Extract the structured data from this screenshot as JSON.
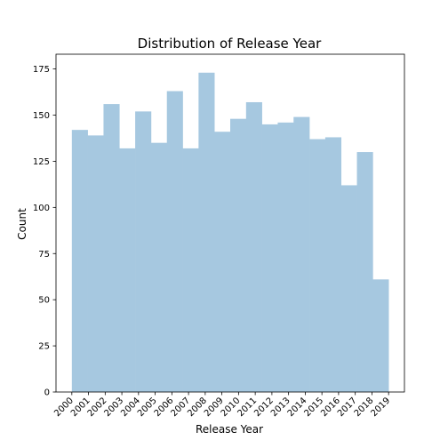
{
  "chart_data": {
    "type": "bar",
    "title": "Distribution of Release Year",
    "xlabel": "Release Year",
    "ylabel": "Count",
    "categories": [
      "2000",
      "2001",
      "2002",
      "2003",
      "2004",
      "2005",
      "2006",
      "2007",
      "2008",
      "2009",
      "2010",
      "2011",
      "2012",
      "2013",
      "2014",
      "2015",
      "2016",
      "2017",
      "2018",
      "2019"
    ],
    "bins": [
      {
        "start": 2000,
        "end": 2000.95,
        "value": 142
      },
      {
        "start": 2000.95,
        "end": 2001.9,
        "value": 139
      },
      {
        "start": 2001.9,
        "end": 2002.85,
        "value": 156
      },
      {
        "start": 2002.85,
        "end": 2003.8,
        "value": 132
      },
      {
        "start": 2003.8,
        "end": 2004.75,
        "value": 152
      },
      {
        "start": 2004.75,
        "end": 2005.7,
        "value": 135
      },
      {
        "start": 2005.7,
        "end": 2006.65,
        "value": 163
      },
      {
        "start": 2006.65,
        "end": 2007.6,
        "value": 132
      },
      {
        "start": 2007.6,
        "end": 2008.55,
        "value": 173
      },
      {
        "start": 2008.55,
        "end": 2009.5,
        "value": 141
      },
      {
        "start": 2009.5,
        "end": 2010.45,
        "value": 148
      },
      {
        "start": 2010.45,
        "end": 2011.4,
        "value": 157
      },
      {
        "start": 2011.4,
        "end": 2012.35,
        "value": 145
      },
      {
        "start": 2012.35,
        "end": 2013.3,
        "value": 146
      },
      {
        "start": 2013.3,
        "end": 2014.25,
        "value": 149
      },
      {
        "start": 2014.25,
        "end": 2015.2,
        "value": 137
      },
      {
        "start": 2015.2,
        "end": 2016.15,
        "value": 138
      },
      {
        "start": 2016.15,
        "end": 2017.1,
        "value": 112
      },
      {
        "start": 2017.1,
        "end": 2018.05,
        "value": 130
      },
      {
        "start": 2018.05,
        "end": 2019,
        "value": 61
      }
    ],
    "yticks": [
      0,
      25,
      50,
      75,
      100,
      125,
      150,
      175
    ],
    "xlim": [
      2000,
      2019
    ],
    "ylim": [
      0,
      183
    ],
    "bar_color": "#a6c8e0",
    "grid": false
  }
}
